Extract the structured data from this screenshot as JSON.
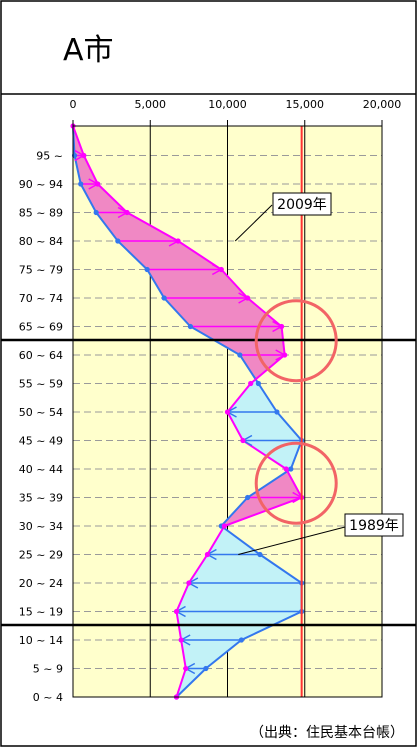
{
  "header": {
    "title": "A市"
  },
  "source_note": "（出典：住民基本台帳）",
  "colors": {
    "series_2009": "#ff00ff",
    "series_1989": "#3377ee",
    "fill_increase": "#f088c4",
    "fill_decrease": "#c2f2f7",
    "plot_background": "#ffffcc",
    "reference_line": "#ff3333",
    "highlight_circle": "#f26466"
  },
  "chart_data": {
    "type": "line",
    "orientation": "horizontal population pyramid (one side)",
    "x_ticks": [
      "0",
      "5,000",
      "10,000",
      "15,000",
      "20,000"
    ],
    "xlim": [
      0,
      20000
    ],
    "reference_x": 14800,
    "categories": [
      "0 ~ 4",
      "5 ~ 9",
      "10 ~ 14",
      "15 ~ 19",
      "20 ~ 24",
      "25 ~ 29",
      "30 ~ 34",
      "35 ~ 39",
      "40 ~ 44",
      "45 ~ 49",
      "50 ~ 54",
      "55 ~ 59",
      "60 ~ 64",
      "65 ~ 69",
      "70 ~ 74",
      "75 ~ 79",
      "80 ~ 84",
      "85 ~ 89",
      "90 ~ 94",
      "95 ~"
    ],
    "top_point": 0,
    "series": [
      {
        "name": "2009年",
        "values": [
          6700,
          7300,
          7000,
          6700,
          7500,
          8700,
          9800,
          14800,
          13800,
          11000,
          10000,
          11500,
          13700,
          13500,
          11300,
          9600,
          6800,
          3500,
          1600,
          700
        ]
      },
      {
        "name": "1989年",
        "values": [
          6700,
          8600,
          10900,
          14800,
          14800,
          12100,
          9600,
          11300,
          14100,
          14800,
          13200,
          12000,
          10800,
          7600,
          5900,
          4800,
          2900,
          1500,
          500,
          100
        ]
      }
    ],
    "annotations": [
      {
        "text": "2009年",
        "target_category": "80 ~ 84",
        "target_x": 10500
      },
      {
        "text": "1989年",
        "target_category": "25 ~ 29",
        "target_x": 10700
      }
    ],
    "highlight_circles": [
      {
        "categories": "60 ~ 69",
        "center_x": 13800
      },
      {
        "categories": "35 ~ 44",
        "center_x": 13800
      }
    ]
  }
}
